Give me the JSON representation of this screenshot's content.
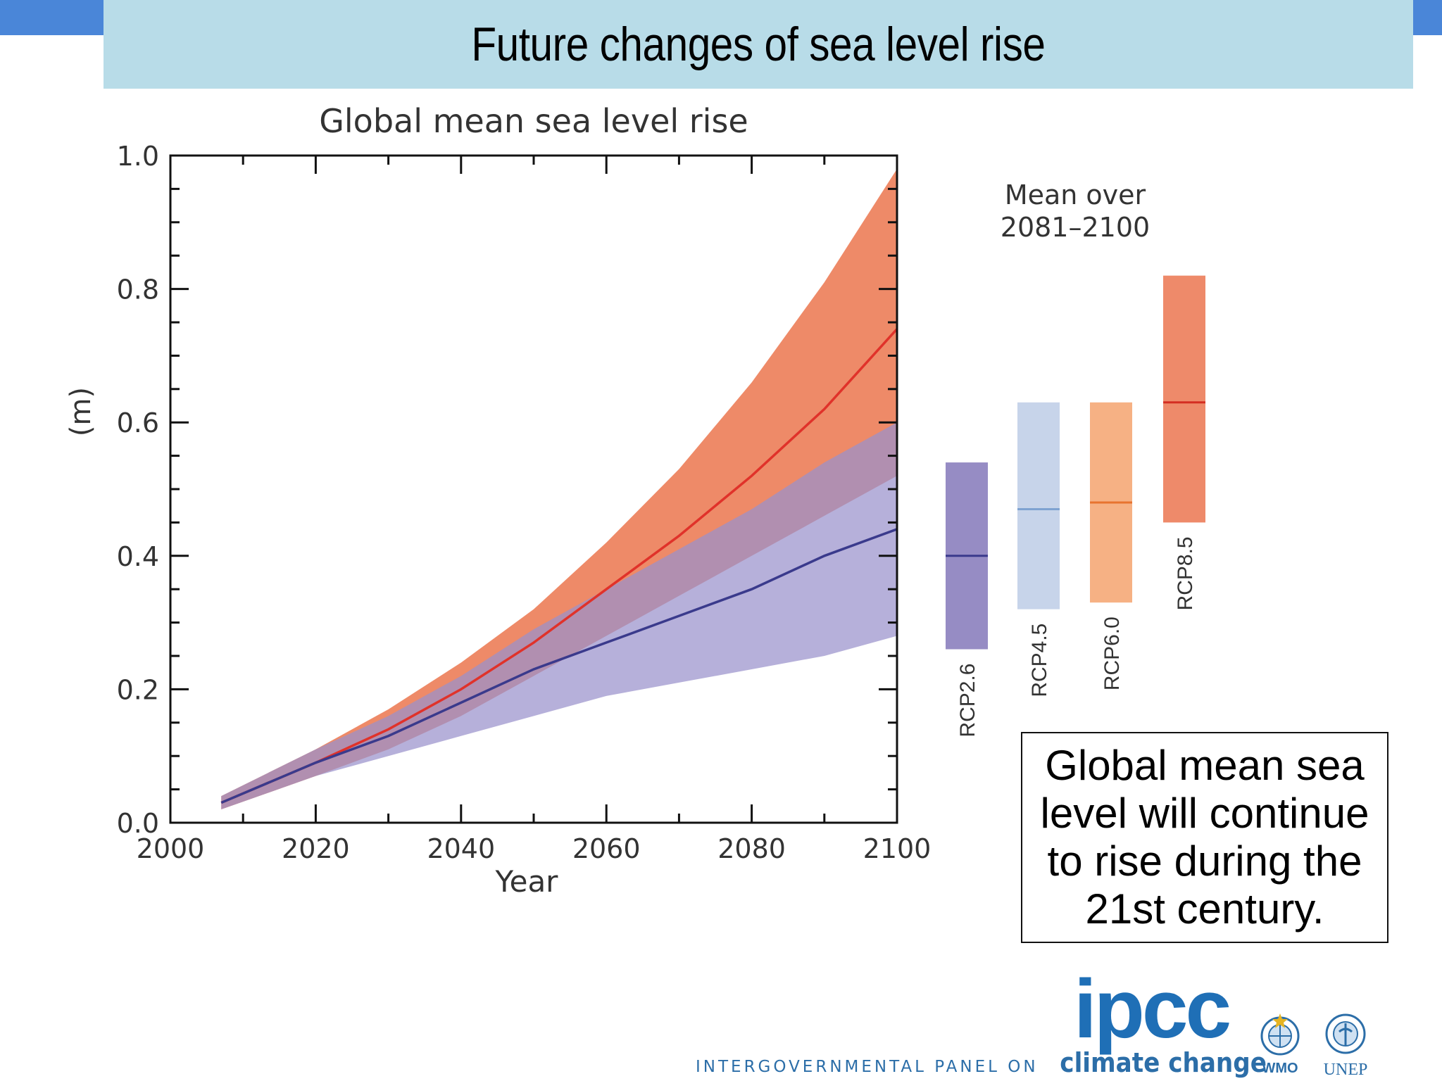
{
  "slide": {
    "title": "Future changes of sea level rise",
    "callout": "Global mean sea level will continue to rise during the 21st century.",
    "colors": {
      "title_bar": "#b8dce8",
      "corner_accent": "#4a86d8",
      "logo_blue": "#1f6fb6"
    }
  },
  "footer": {
    "logo": "ipcc",
    "subtitle": "INTERGOVERNMENTAL PANEL ON",
    "subtitle_bold": "climate change",
    "org1": "WMO",
    "org2": "UNEP"
  },
  "chart_data": {
    "type": "area",
    "title": "Global mean sea level rise",
    "xlabel": "Year",
    "ylabel": "(m)",
    "xlim": [
      2000,
      2100
    ],
    "ylim": [
      0,
      1.0
    ],
    "xticks": [
      2000,
      2020,
      2040,
      2060,
      2080,
      2100
    ],
    "xtick_labels": [
      "2000",
      "2020",
      "2040",
      "2060",
      "2080",
      "2100"
    ],
    "yticks": [
      0,
      0.2,
      0.4,
      0.6,
      0.8,
      1.0
    ],
    "ytick_labels": [
      "0.0",
      "0.2",
      "0.4",
      "0.6",
      "0.8",
      "1.0"
    ],
    "grid": false,
    "series": [
      {
        "name": "RCP8.5",
        "line_color": "#e0322a",
        "band_color": "#ee8a68",
        "x": [
          2007,
          2020,
          2030,
          2040,
          2050,
          2060,
          2070,
          2080,
          2090,
          2100
        ],
        "mean": [
          0.03,
          0.09,
          0.14,
          0.2,
          0.27,
          0.35,
          0.43,
          0.52,
          0.62,
          0.74
        ],
        "upper": [
          0.04,
          0.11,
          0.17,
          0.24,
          0.32,
          0.42,
          0.53,
          0.66,
          0.81,
          0.98
        ],
        "lower": [
          0.02,
          0.07,
          0.11,
          0.16,
          0.22,
          0.28,
          0.34,
          0.4,
          0.46,
          0.52
        ]
      },
      {
        "name": "RCP2.6",
        "line_color": "#3a3a8c",
        "band_color": "#9a92cc",
        "x": [
          2007,
          2020,
          2030,
          2040,
          2050,
          2060,
          2070,
          2080,
          2090,
          2100
        ],
        "mean": [
          0.03,
          0.09,
          0.13,
          0.18,
          0.23,
          0.27,
          0.31,
          0.35,
          0.4,
          0.44
        ],
        "upper": [
          0.04,
          0.11,
          0.16,
          0.22,
          0.29,
          0.35,
          0.41,
          0.47,
          0.54,
          0.6
        ],
        "lower": [
          0.02,
          0.07,
          0.1,
          0.13,
          0.16,
          0.19,
          0.21,
          0.23,
          0.25,
          0.28
        ]
      }
    ],
    "side_panel": {
      "title": "Mean over\n2081–2100",
      "bars": [
        {
          "name": "RCP2.6",
          "low": 0.26,
          "high": 0.54,
          "mean": 0.4,
          "color": "#968cc4",
          "line_color": "#3a3a8c"
        },
        {
          "name": "RCP4.5",
          "low": 0.32,
          "high": 0.63,
          "mean": 0.47,
          "color": "#c7d4ea",
          "line_color": "#7fa3d1"
        },
        {
          "name": "RCP6.0",
          "low": 0.33,
          "high": 0.63,
          "mean": 0.48,
          "color": "#f6b184",
          "line_color": "#e8742f"
        },
        {
          "name": "RCP8.5",
          "low": 0.45,
          "high": 0.82,
          "mean": 0.63,
          "color": "#ee8a6a",
          "line_color": "#d42e22"
        }
      ]
    }
  }
}
